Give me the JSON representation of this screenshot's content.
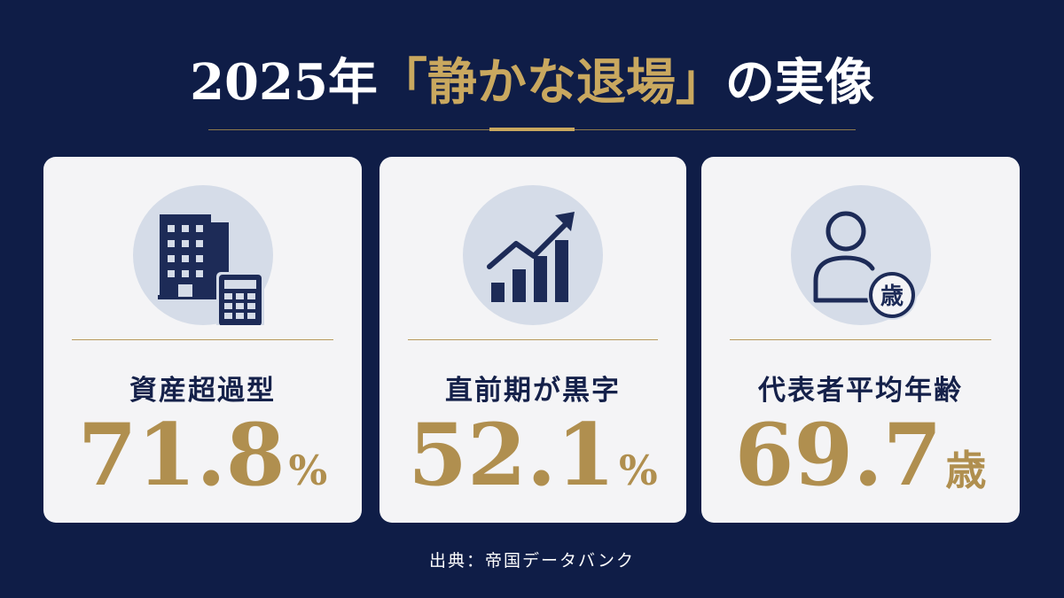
{
  "title": {
    "prefix": "2025年",
    "highlight": "「静かな退場」",
    "suffix": "の実像"
  },
  "cards": [
    {
      "icon": "building-calculator-icon",
      "label": "資産超過型",
      "value": "71.8",
      "unit": "%"
    },
    {
      "icon": "chart-growth-icon",
      "label": "直前期が黒字",
      "value": "52.1",
      "unit": "%"
    },
    {
      "icon": "person-age-icon",
      "label": "代表者平均年齢",
      "value": "69.7",
      "unit": "歳",
      "badge": "歳"
    }
  ],
  "source": "出典：帝国データバンク",
  "colors": {
    "background": "#0f1d47",
    "gold": "#c9a85f",
    "card": "#f4f4f6",
    "navy": "#15214a"
  }
}
